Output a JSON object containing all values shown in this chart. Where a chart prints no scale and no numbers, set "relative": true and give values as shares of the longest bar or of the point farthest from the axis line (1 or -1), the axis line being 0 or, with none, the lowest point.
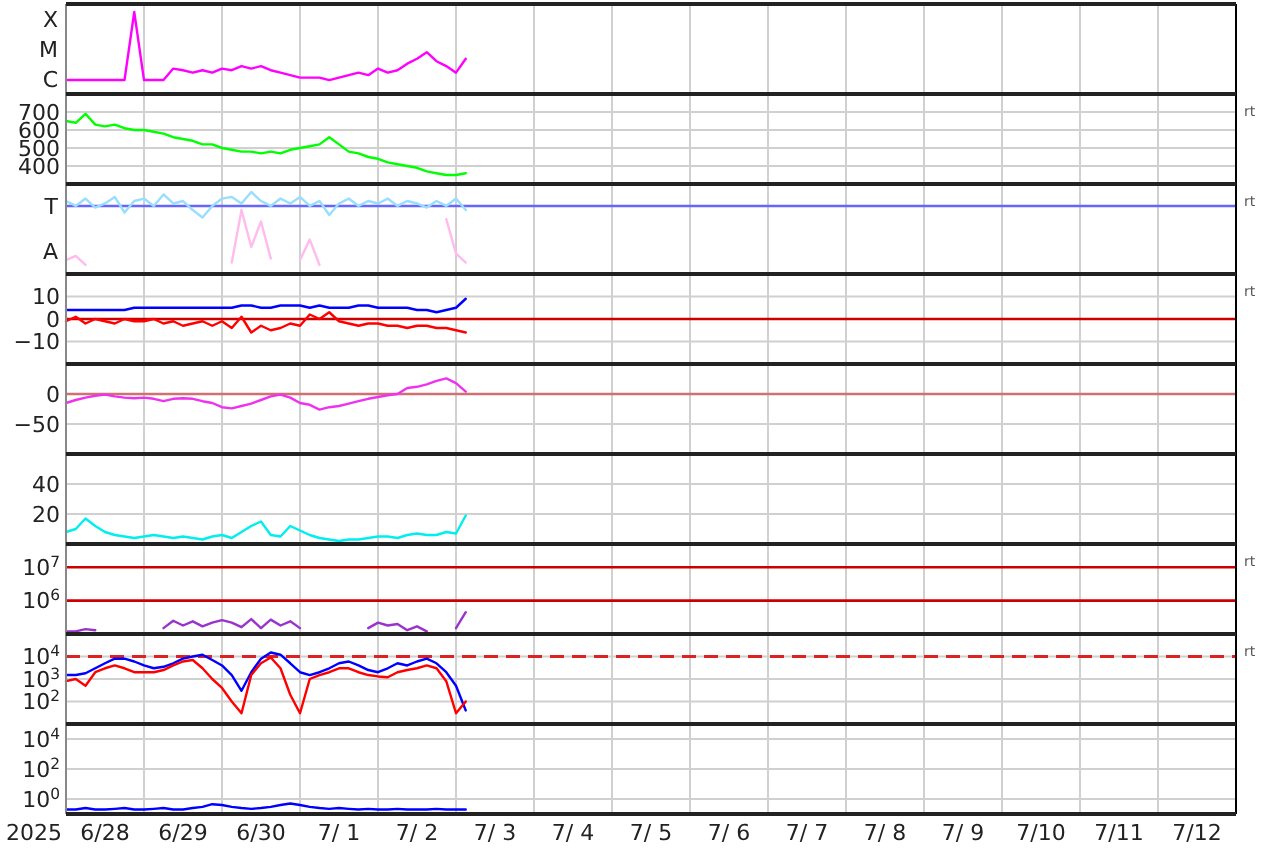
{
  "chart_data": [
    {
      "type": "line",
      "relative": true,
      "annotations": [
        "X",
        "M",
        "C"
      ],
      "grid": "x",
      "tick_labels": false,
      "xlim": [
        "2025-06-28T00:00",
        "2025-07-13T00:00"
      ],
      "xticks": [
        {
          "value": "2025-06-29T00:00",
          "label": null
        },
        {
          "value": "2025-06-30T00:00",
          "label": null
        },
        {
          "value": "2025-07-01T00:00",
          "label": null
        },
        {
          "value": "2025-07-02T00:00",
          "label": null
        },
        {
          "value": "2025-07-03T00:00",
          "label": null
        },
        {
          "value": "2025-07-04T00:00",
          "label": null
        },
        {
          "value": "2025-07-05T00:00",
          "label": null
        },
        {
          "value": "2025-07-06T00:00",
          "label": null
        },
        {
          "value": "2025-07-07T00:00",
          "label": null
        },
        {
          "value": "2025-07-08T00:00",
          "label": null
        },
        {
          "value": "2025-07-09T00:00",
          "label": null
        },
        {
          "value": "2025-07-10T00:00",
          "label": null
        },
        {
          "value": "2025-07-11T00:00",
          "label": null
        },
        {
          "value": "2025-07-12T00:00",
          "label": null
        }
      ],
      "x": [
        "2025-06-28T00:00",
        "2025-06-28T03:00",
        "2025-06-28T06:00",
        "2025-06-28T09:00",
        "2025-06-28T12:00",
        "2025-06-28T15:00",
        "2025-06-28T18:00",
        "2025-06-28T21:00",
        "2025-06-29T00:00",
        "2025-06-29T03:00",
        "2025-06-29T06:00",
        "2025-06-29T09:00",
        "2025-06-29T12:00",
        "2025-06-29T15:00",
        "2025-06-29T18:00",
        "2025-06-29T21:00",
        "2025-06-30T00:00",
        "2025-06-30T03:00",
        "2025-06-30T06:00",
        "2025-06-30T09:00",
        "2025-06-30T12:00",
        "2025-06-30T15:00",
        "2025-06-30T18:00",
        "2025-06-30T21:00",
        "2025-07-01T00:00",
        "2025-07-01T03:00",
        "2025-07-01T06:00",
        "2025-07-01T09:00",
        "2025-07-01T12:00",
        "2025-07-01T15:00",
        "2025-07-01T18:00",
        "2025-07-01T21:00",
        "2025-07-02T00:00",
        "2025-07-02T03:00",
        "2025-07-02T06:00",
        "2025-07-02T09:00",
        "2025-07-02T12:00",
        "2025-07-02T15:00",
        "2025-07-02T18:00",
        "2025-07-02T21:00",
        "2025-07-03T00:00",
        "2025-07-03T03:00"
      ],
      "series": [
        {
          "color": "#ff00ff",
          "values": [
            0.17,
            0.17,
            0.17,
            0.17,
            0.17,
            0.17,
            0.17,
            1,
            0.17,
            0.17,
            0.17,
            0.31,
            0.29,
            0.26,
            0.29,
            0.26,
            0.31,
            0.29,
            0.34,
            0.31,
            0.34,
            0.29,
            0.26,
            0.23,
            0.2,
            0.2,
            0.2,
            0.17,
            0.2,
            0.23,
            0.26,
            0.23,
            0.31,
            0.26,
            0.29,
            0.37,
            0.43,
            0.51,
            0.4,
            0.34,
            0.26,
            0.43
          ]
        }
      ]
    },
    {
      "type": "line",
      "ylim": [
        300,
        800
      ],
      "yticks": [
        400,
        500,
        600,
        700
      ],
      "grid": true,
      "tick_labels": "y",
      "xlim": [
        "2025-06-28T00:00",
        "2025-07-13T00:00"
      ],
      "y2label": "rt",
      "xticks": [
        {
          "value": "2025-06-29T00:00",
          "label": null
        },
        {
          "value": "2025-06-30T00:00",
          "label": null
        },
        {
          "value": "2025-07-01T00:00",
          "label": null
        },
        {
          "value": "2025-07-02T00:00",
          "label": null
        },
        {
          "value": "2025-07-03T00:00",
          "label": null
        },
        {
          "value": "2025-07-04T00:00",
          "label": null
        },
        {
          "value": "2025-07-05T00:00",
          "label": null
        },
        {
          "value": "2025-07-06T00:00",
          "label": null
        },
        {
          "value": "2025-07-07T00:00",
          "label": null
        },
        {
          "value": "2025-07-08T00:00",
          "label": null
        },
        {
          "value": "2025-07-09T00:00",
          "label": null
        },
        {
          "value": "2025-07-10T00:00",
          "label": null
        },
        {
          "value": "2025-07-11T00:00",
          "label": null
        },
        {
          "value": "2025-07-12T00:00",
          "label": null
        }
      ],
      "x": [
        "2025-06-28T00:00",
        "2025-06-28T03:00",
        "2025-06-28T06:00",
        "2025-06-28T09:00",
        "2025-06-28T12:00",
        "2025-06-28T15:00",
        "2025-06-28T18:00",
        "2025-06-28T21:00",
        "2025-06-29T00:00",
        "2025-06-29T03:00",
        "2025-06-29T06:00",
        "2025-06-29T09:00",
        "2025-06-29T12:00",
        "2025-06-29T15:00",
        "2025-06-29T18:00",
        "2025-06-29T21:00",
        "2025-06-30T00:00",
        "2025-06-30T03:00",
        "2025-06-30T06:00",
        "2025-06-30T09:00",
        "2025-06-30T12:00",
        "2025-06-30T15:00",
        "2025-06-30T18:00",
        "2025-06-30T21:00",
        "2025-07-01T00:00",
        "2025-07-01T03:00",
        "2025-07-01T06:00",
        "2025-07-01T09:00",
        "2025-07-01T12:00",
        "2025-07-01T15:00",
        "2025-07-01T18:00",
        "2025-07-01T21:00",
        "2025-07-02T00:00",
        "2025-07-02T03:00",
        "2025-07-02T06:00",
        "2025-07-02T09:00",
        "2025-07-02T12:00",
        "2025-07-02T15:00",
        "2025-07-02T18:00",
        "2025-07-02T21:00",
        "2025-07-03T00:00",
        "2025-07-03T03:00"
      ],
      "series": [
        {
          "color": "#00ff00",
          "values": [
            650,
            640,
            690,
            630,
            620,
            630,
            610,
            600,
            600,
            590,
            580,
            560,
            550,
            540,
            520,
            520,
            500,
            490,
            480,
            480,
            470,
            480,
            470,
            490,
            500,
            510,
            520,
            560,
            520,
            480,
            470,
            450,
            440,
            420,
            410,
            400,
            390,
            370,
            360,
            350,
            350,
            360
          ]
        }
      ]
    },
    {
      "type": "line",
      "relative": true,
      "annotations": [
        "T",
        "A"
      ],
      "grid": "x",
      "tick_labels": false,
      "xlim": [
        "2025-06-28T00:00",
        "2025-07-13T00:00"
      ],
      "y2label": "rt",
      "ref_lines": [
        {
          "axis": "y",
          "value": 0.83,
          "color": "#6666ff"
        }
      ],
      "xticks": [
        {
          "value": "2025-06-29T00:00",
          "label": null
        },
        {
          "value": "2025-06-30T00:00",
          "label": null
        },
        {
          "value": "2025-07-01T00:00",
          "label": null
        },
        {
          "value": "2025-07-02T00:00",
          "label": null
        },
        {
          "value": "2025-07-03T00:00",
          "label": null
        },
        {
          "value": "2025-07-04T00:00",
          "label": null
        },
        {
          "value": "2025-07-05T00:00",
          "label": null
        },
        {
          "value": "2025-07-06T00:00",
          "label": null
        },
        {
          "value": "2025-07-07T00:00",
          "label": null
        },
        {
          "value": "2025-07-08T00:00",
          "label": null
        },
        {
          "value": "2025-07-09T00:00",
          "label": null
        },
        {
          "value": "2025-07-10T00:00",
          "label": null
        },
        {
          "value": "2025-07-11T00:00",
          "label": null
        },
        {
          "value": "2025-07-12T00:00",
          "label": null
        }
      ],
      "x": [
        "2025-06-28T00:00",
        "2025-06-28T03:00",
        "2025-06-28T06:00",
        "2025-06-28T09:00",
        "2025-06-28T12:00",
        "2025-06-28T15:00",
        "2025-06-28T18:00",
        "2025-06-28T21:00",
        "2025-06-29T00:00",
        "2025-06-29T03:00",
        "2025-06-29T06:00",
        "2025-06-29T09:00",
        "2025-06-29T12:00",
        "2025-06-29T15:00",
        "2025-06-29T18:00",
        "2025-06-29T21:00",
        "2025-06-30T00:00",
        "2025-06-30T03:00",
        "2025-06-30T06:00",
        "2025-06-30T09:00",
        "2025-06-30T12:00",
        "2025-06-30T15:00",
        "2025-06-30T18:00",
        "2025-06-30T21:00",
        "2025-07-01T00:00",
        "2025-07-01T03:00",
        "2025-07-01T06:00",
        "2025-07-01T09:00",
        "2025-07-01T12:00",
        "2025-07-01T15:00",
        "2025-07-01T18:00",
        "2025-07-01T21:00",
        "2025-07-02T00:00",
        "2025-07-02T03:00",
        "2025-07-02T06:00",
        "2025-07-02T09:00",
        "2025-07-02T12:00",
        "2025-07-02T15:00",
        "2025-07-02T18:00",
        "2025-07-02T21:00",
        "2025-07-03T00:00",
        "2025-07-03T03:00"
      ],
      "series": [
        {
          "color": "#99ddff",
          "values": [
            0.89,
            0.83,
            0.92,
            0.81,
            0.86,
            0.94,
            0.75,
            0.89,
            0.92,
            0.83,
            0.97,
            0.86,
            0.89,
            0.78,
            0.69,
            0.83,
            0.92,
            0.94,
            0.86,
            1,
            0.89,
            0.83,
            0.92,
            0.86,
            0.94,
            0.83,
            0.89,
            0.72,
            0.86,
            0.92,
            0.83,
            0.89,
            0.86,
            0.92,
            0.83,
            0.89,
            0.86,
            0.81,
            0.89,
            0.83,
            0.92,
            0.78
          ]
        },
        {
          "color": "#ffbbee",
          "values": [
            0.17,
            0.22,
            0.11,
            null,
            null,
            null,
            null,
            null,
            null,
            null,
            null,
            null,
            null,
            null,
            null,
            null,
            null,
            0.14,
            0.78,
            0.33,
            0.64,
            0.19,
            null,
            null,
            0.17,
            0.42,
            0.11,
            null,
            null,
            null,
            null,
            null,
            null,
            null,
            null,
            null,
            null,
            null,
            null,
            0.67,
            0.25,
            0.14
          ]
        }
      ]
    },
    {
      "type": "line",
      "ylim": [
        -20,
        20
      ],
      "yticks": [
        {
          "value": 10,
          "label": "10"
        },
        {
          "value": 0,
          "label": "0"
        },
        {
          "value": -10,
          "label": "−10"
        }
      ],
      "grid": true,
      "tick_labels": "y",
      "xlim": [
        "2025-06-28T00:00",
        "2025-07-13T00:00"
      ],
      "y2label": "rt",
      "ref_lines": [
        {
          "axis": "y",
          "value": 0,
          "color": "#cc0000"
        }
      ],
      "xticks": [
        {
          "value": "2025-06-29T00:00",
          "label": null
        },
        {
          "value": "2025-06-30T00:00",
          "label": null
        },
        {
          "value": "2025-07-01T00:00",
          "label": null
        },
        {
          "value": "2025-07-02T00:00",
          "label": null
        },
        {
          "value": "2025-07-03T00:00",
          "label": null
        },
        {
          "value": "2025-07-04T00:00",
          "label": null
        },
        {
          "value": "2025-07-05T00:00",
          "label": null
        },
        {
          "value": "2025-07-06T00:00",
          "label": null
        },
        {
          "value": "2025-07-07T00:00",
          "label": null
        },
        {
          "value": "2025-07-08T00:00",
          "label": null
        },
        {
          "value": "2025-07-09T00:00",
          "label": null
        },
        {
          "value": "2025-07-10T00:00",
          "label": null
        },
        {
          "value": "2025-07-11T00:00",
          "label": null
        },
        {
          "value": "2025-07-12T00:00",
          "label": null
        }
      ],
      "x": [
        "2025-06-28T00:00",
        "2025-06-28T03:00",
        "2025-06-28T06:00",
        "2025-06-28T09:00",
        "2025-06-28T12:00",
        "2025-06-28T15:00",
        "2025-06-28T18:00",
        "2025-06-28T21:00",
        "2025-06-29T00:00",
        "2025-06-29T03:00",
        "2025-06-29T06:00",
        "2025-06-29T09:00",
        "2025-06-29T12:00",
        "2025-06-29T15:00",
        "2025-06-29T18:00",
        "2025-06-29T21:00",
        "2025-06-30T00:00",
        "2025-06-30T03:00",
        "2025-06-30T06:00",
        "2025-06-30T09:00",
        "2025-06-30T12:00",
        "2025-06-30T15:00",
        "2025-06-30T18:00",
        "2025-06-30T21:00",
        "2025-07-01T00:00",
        "2025-07-01T03:00",
        "2025-07-01T06:00",
        "2025-07-01T09:00",
        "2025-07-01T12:00",
        "2025-07-01T15:00",
        "2025-07-01T18:00",
        "2025-07-01T21:00",
        "2025-07-02T00:00",
        "2025-07-02T03:00",
        "2025-07-02T06:00",
        "2025-07-02T09:00",
        "2025-07-02T12:00",
        "2025-07-02T15:00",
        "2025-07-02T18:00",
        "2025-07-02T21:00",
        "2025-07-03T00:00",
        "2025-07-03T03:00"
      ],
      "series": [
        {
          "color": "#0000ff",
          "values": [
            4,
            4,
            4,
            4,
            4,
            4,
            4,
            5,
            5,
            5,
            5,
            5,
            5,
            5,
            5,
            5,
            5,
            5,
            6,
            6,
            5,
            5,
            6,
            6,
            6,
            5,
            6,
            5,
            5,
            5,
            6,
            6,
            5,
            5,
            5,
            5,
            4,
            4,
            3,
            4,
            5,
            9
          ]
        },
        {
          "color": "#ff0000",
          "values": [
            -1,
            1,
            -2,
            0,
            -1,
            -2,
            0,
            -1,
            -1,
            0,
            -2,
            -1,
            -3,
            -2,
            -1,
            -3,
            -1,
            -4,
            1,
            -6,
            -3,
            -5,
            -4,
            -2,
            -3,
            2,
            0,
            3,
            -1,
            -2,
            -3,
            -2,
            -2,
            -3,
            -3,
            -4,
            -3,
            -3,
            -4,
            -4,
            -5,
            -6
          ]
        }
      ]
    },
    {
      "type": "line",
      "ylim": [
        -100,
        50
      ],
      "yticks": [
        {
          "value": 0,
          "label": "0"
        },
        {
          "value": -50,
          "label": "−50"
        }
      ],
      "grid": true,
      "tick_labels": "y",
      "xlim": [
        "2025-06-28T00:00",
        "2025-07-13T00:00"
      ],
      "ref_lines": [
        {
          "axis": "y",
          "value": 0,
          "color": "#d07070"
        }
      ],
      "xticks": [
        {
          "value": "2025-06-29T00:00",
          "label": null
        },
        {
          "value": "2025-06-30T00:00",
          "label": null
        },
        {
          "value": "2025-07-01T00:00",
          "label": null
        },
        {
          "value": "2025-07-02T00:00",
          "label": null
        },
        {
          "value": "2025-07-03T00:00",
          "label": null
        },
        {
          "value": "2025-07-04T00:00",
          "label": null
        },
        {
          "value": "2025-07-05T00:00",
          "label": null
        },
        {
          "value": "2025-07-06T00:00",
          "label": null
        },
        {
          "value": "2025-07-07T00:00",
          "label": null
        },
        {
          "value": "2025-07-08T00:00",
          "label": null
        },
        {
          "value": "2025-07-09T00:00",
          "label": null
        },
        {
          "value": "2025-07-10T00:00",
          "label": null
        },
        {
          "value": "2025-07-11T00:00",
          "label": null
        },
        {
          "value": "2025-07-12T00:00",
          "label": null
        }
      ],
      "x": [
        "2025-06-28T00:00",
        "2025-06-28T03:00",
        "2025-06-28T06:00",
        "2025-06-28T09:00",
        "2025-06-28T12:00",
        "2025-06-28T15:00",
        "2025-06-28T18:00",
        "2025-06-28T21:00",
        "2025-06-29T00:00",
        "2025-06-29T03:00",
        "2025-06-29T06:00",
        "2025-06-29T09:00",
        "2025-06-29T12:00",
        "2025-06-29T15:00",
        "2025-06-29T18:00",
        "2025-06-29T21:00",
        "2025-06-30T00:00",
        "2025-06-30T03:00",
        "2025-06-30T06:00",
        "2025-06-30T09:00",
        "2025-06-30T12:00",
        "2025-06-30T15:00",
        "2025-06-30T18:00",
        "2025-06-30T21:00",
        "2025-07-01T00:00",
        "2025-07-01T03:00",
        "2025-07-01T06:00",
        "2025-07-01T09:00",
        "2025-07-01T12:00",
        "2025-07-01T15:00",
        "2025-07-01T18:00",
        "2025-07-01T21:00",
        "2025-07-02T00:00",
        "2025-07-02T03:00",
        "2025-07-02T06:00",
        "2025-07-02T09:00",
        "2025-07-02T12:00",
        "2025-07-02T15:00",
        "2025-07-02T18:00",
        "2025-07-02T21:00",
        "2025-07-03T00:00",
        "2025-07-03T03:00"
      ],
      "series": [
        {
          "color": "#ee33ee",
          "values": [
            -15,
            -10,
            -6,
            -3,
            -1,
            -4,
            -6,
            -7,
            -6,
            -8,
            -12,
            -8,
            -7,
            -8,
            -12,
            -15,
            -22,
            -24,
            -20,
            -16,
            -10,
            -4,
            -1,
            -6,
            -15,
            -18,
            -26,
            -22,
            -20,
            -16,
            -12,
            -8,
            -5,
            -2,
            0,
            10,
            12,
            16,
            22,
            26,
            18,
            4
          ]
        }
      ]
    },
    {
      "type": "line",
      "ylim": [
        0,
        60
      ],
      "yticks": [
        20,
        40
      ],
      "grid": true,
      "tick_labels": "y",
      "xlim": [
        "2025-06-28T00:00",
        "2025-07-13T00:00"
      ],
      "xticks": [
        {
          "value": "2025-06-29T00:00",
          "label": null
        },
        {
          "value": "2025-06-30T00:00",
          "label": null
        },
        {
          "value": "2025-07-01T00:00",
          "label": null
        },
        {
          "value": "2025-07-02T00:00",
          "label": null
        },
        {
          "value": "2025-07-03T00:00",
          "label": null
        },
        {
          "value": "2025-07-04T00:00",
          "label": null
        },
        {
          "value": "2025-07-05T00:00",
          "label": null
        },
        {
          "value": "2025-07-06T00:00",
          "label": null
        },
        {
          "value": "2025-07-07T00:00",
          "label": null
        },
        {
          "value": "2025-07-08T00:00",
          "label": null
        },
        {
          "value": "2025-07-09T00:00",
          "label": null
        },
        {
          "value": "2025-07-10T00:00",
          "label": null
        },
        {
          "value": "2025-07-11T00:00",
          "label": null
        },
        {
          "value": "2025-07-12T00:00",
          "label": null
        }
      ],
      "x": [
        "2025-06-28T00:00",
        "2025-06-28T03:00",
        "2025-06-28T06:00",
        "2025-06-28T09:00",
        "2025-06-28T12:00",
        "2025-06-28T15:00",
        "2025-06-28T18:00",
        "2025-06-28T21:00",
        "2025-06-29T00:00",
        "2025-06-29T03:00",
        "2025-06-29T06:00",
        "2025-06-29T09:00",
        "2025-06-29T12:00",
        "2025-06-29T15:00",
        "2025-06-29T18:00",
        "2025-06-29T21:00",
        "2025-06-30T00:00",
        "2025-06-30T03:00",
        "2025-06-30T06:00",
        "2025-06-30T09:00",
        "2025-06-30T12:00",
        "2025-06-30T15:00",
        "2025-06-30T18:00",
        "2025-06-30T21:00",
        "2025-07-01T00:00",
        "2025-07-01T03:00",
        "2025-07-01T06:00",
        "2025-07-01T09:00",
        "2025-07-01T12:00",
        "2025-07-01T15:00",
        "2025-07-01T18:00",
        "2025-07-01T21:00",
        "2025-07-02T00:00",
        "2025-07-02T03:00",
        "2025-07-02T06:00",
        "2025-07-02T09:00",
        "2025-07-02T12:00",
        "2025-07-02T15:00",
        "2025-07-02T18:00",
        "2025-07-02T21:00",
        "2025-07-03T00:00",
        "2025-07-03T03:00"
      ],
      "series": [
        {
          "color": "#00eeee",
          "values": [
            8,
            10,
            17,
            12,
            8,
            6,
            5,
            4,
            5,
            6,
            5,
            4,
            5,
            4,
            3,
            5,
            6,
            4,
            8,
            12,
            15,
            6,
            5,
            12,
            9,
            6,
            4,
            3,
            2,
            3,
            3,
            4,
            5,
            5,
            4,
            6,
            7,
            6,
            6,
            8,
            7,
            19
          ]
        }
      ]
    },
    {
      "type": "line",
      "log": "y",
      "ylim": [
        100000,
        50000000
      ],
      "yticks": [
        {
          "value": 10000000,
          "label": "10$^{7}$"
        },
        {
          "value": 1000000,
          "label": "10$^{6}$"
        }
      ],
      "grid": "x",
      "tick_labels": "y",
      "xlim": [
        "2025-06-28T00:00",
        "2025-07-13T00:00"
      ],
      "y2label": "rt",
      "ref_lines": [
        {
          "axis": "y",
          "value": 10000000,
          "color": "#cc0000"
        },
        {
          "axis": "y",
          "value": 1000000,
          "color": "#cc0000"
        }
      ],
      "xticks": [
        {
          "value": "2025-06-29T00:00",
          "label": null
        },
        {
          "value": "2025-06-30T00:00",
          "label": null
        },
        {
          "value": "2025-07-01T00:00",
          "label": null
        },
        {
          "value": "2025-07-02T00:00",
          "label": null
        },
        {
          "value": "2025-07-03T00:00",
          "label": null
        },
        {
          "value": "2025-07-04T00:00",
          "label": null
        },
        {
          "value": "2025-07-05T00:00",
          "label": null
        },
        {
          "value": "2025-07-06T00:00",
          "label": null
        },
        {
          "value": "2025-07-07T00:00",
          "label": null
        },
        {
          "value": "2025-07-08T00:00",
          "label": null
        },
        {
          "value": "2025-07-09T00:00",
          "label": null
        },
        {
          "value": "2025-07-10T00:00",
          "label": null
        },
        {
          "value": "2025-07-11T00:00",
          "label": null
        },
        {
          "value": "2025-07-12T00:00",
          "label": null
        }
      ],
      "x": [
        "2025-06-28T00:00",
        "2025-06-28T03:00",
        "2025-06-28T06:00",
        "2025-06-28T09:00",
        "2025-06-28T12:00",
        "2025-06-28T15:00",
        "2025-06-28T18:00",
        "2025-06-28T21:00",
        "2025-06-29T00:00",
        "2025-06-29T03:00",
        "2025-06-29T06:00",
        "2025-06-29T09:00",
        "2025-06-29T12:00",
        "2025-06-29T15:00",
        "2025-06-29T18:00",
        "2025-06-29T21:00",
        "2025-06-30T00:00",
        "2025-06-30T03:00",
        "2025-06-30T06:00",
        "2025-06-30T09:00",
        "2025-06-30T12:00",
        "2025-06-30T15:00",
        "2025-06-30T18:00",
        "2025-06-30T21:00",
        "2025-07-01T00:00",
        "2025-07-01T03:00",
        "2025-07-01T06:00",
        "2025-07-01T09:00",
        "2025-07-01T12:00",
        "2025-07-01T15:00",
        "2025-07-01T18:00",
        "2025-07-01T21:00",
        "2025-07-02T00:00",
        "2025-07-02T03:00",
        "2025-07-02T06:00",
        "2025-07-02T09:00",
        "2025-07-02T12:00",
        "2025-07-02T15:00",
        "2025-07-02T18:00",
        "2025-07-02T21:00",
        "2025-07-03T00:00",
        "2025-07-03T03:00"
      ],
      "series": [
        {
          "color": "#9933cc",
          "values": [
            120000,
            120000,
            140000,
            130000,
            null,
            null,
            null,
            null,
            null,
            null,
            150000,
            250000,
            180000,
            240000,
            170000,
            220000,
            260000,
            220000,
            160000,
            280000,
            150000,
            270000,
            180000,
            240000,
            150000,
            null,
            null,
            null,
            null,
            null,
            null,
            150000,
            220000,
            180000,
            200000,
            130000,
            170000,
            120000,
            null,
            null,
            150000,
            450000
          ]
        }
      ]
    },
    {
      "type": "line",
      "log": "y",
      "ylim": [
        10,
        100000
      ],
      "yticks": [
        {
          "value": 10000,
          "label": "10$^{4}$"
        },
        {
          "value": 1000,
          "label": "10$^{3}$"
        },
        {
          "value": 100,
          "label": "10$^{2}$"
        }
      ],
      "grid": true,
      "tick_labels": "y",
      "xlim": [
        "2025-06-28T00:00",
        "2025-07-13T00:00"
      ],
      "y2label": "rt",
      "ref_lines": [
        {
          "axis": "y",
          "value": 10000,
          "color": "#dd2222",
          "line_style": "dashed"
        }
      ],
      "xticks": [
        {
          "value": "2025-06-29T00:00",
          "label": null
        },
        {
          "value": "2025-06-30T00:00",
          "label": null
        },
        {
          "value": "2025-07-01T00:00",
          "label": null
        },
        {
          "value": "2025-07-02T00:00",
          "label": null
        },
        {
          "value": "2025-07-03T00:00",
          "label": null
        },
        {
          "value": "2025-07-04T00:00",
          "label": null
        },
        {
          "value": "2025-07-05T00:00",
          "label": null
        },
        {
          "value": "2025-07-06T00:00",
          "label": null
        },
        {
          "value": "2025-07-07T00:00",
          "label": null
        },
        {
          "value": "2025-07-08T00:00",
          "label": null
        },
        {
          "value": "2025-07-09T00:00",
          "label": null
        },
        {
          "value": "2025-07-10T00:00",
          "label": null
        },
        {
          "value": "2025-07-11T00:00",
          "label": null
        },
        {
          "value": "2025-07-12T00:00",
          "label": null
        }
      ],
      "x": [
        "2025-06-28T00:00",
        "2025-06-28T03:00",
        "2025-06-28T06:00",
        "2025-06-28T09:00",
        "2025-06-28T12:00",
        "2025-06-28T15:00",
        "2025-06-28T18:00",
        "2025-06-28T21:00",
        "2025-06-29T00:00",
        "2025-06-29T03:00",
        "2025-06-29T06:00",
        "2025-06-29T09:00",
        "2025-06-29T12:00",
        "2025-06-29T15:00",
        "2025-06-29T18:00",
        "2025-06-29T21:00",
        "2025-06-30T00:00",
        "2025-06-30T03:00",
        "2025-06-30T06:00",
        "2025-06-30T09:00",
        "2025-06-30T12:00",
        "2025-06-30T15:00",
        "2025-06-30T18:00",
        "2025-06-30T21:00",
        "2025-07-01T00:00",
        "2025-07-01T03:00",
        "2025-07-01T06:00",
        "2025-07-01T09:00",
        "2025-07-01T12:00",
        "2025-07-01T15:00",
        "2025-07-01T18:00",
        "2025-07-01T21:00",
        "2025-07-02T00:00",
        "2025-07-02T03:00",
        "2025-07-02T06:00",
        "2025-07-02T09:00",
        "2025-07-02T12:00",
        "2025-07-02T15:00",
        "2025-07-02T18:00",
        "2025-07-02T21:00",
        "2025-07-03T00:00",
        "2025-07-03T03:00"
      ],
      "series": [
        {
          "color": "#0000ff",
          "values": [
            1500,
            1500,
            1800,
            3000,
            5000,
            8000,
            8000,
            6000,
            4000,
            3000,
            3500,
            5000,
            8000,
            10000,
            12000,
            7000,
            4000,
            1500,
            300,
            2000,
            8000,
            15000,
            12000,
            5000,
            2000,
            1500,
            2000,
            3000,
            5000,
            6000,
            4000,
            2500,
            2000,
            3000,
            5000,
            4000,
            6000,
            8000,
            5000,
            2000,
            500,
            40
          ]
        },
        {
          "color": "#ff0000",
          "values": [
            800,
            1000,
            500,
            2000,
            3000,
            4000,
            3000,
            2000,
            2000,
            2000,
            2500,
            4000,
            6000,
            7000,
            3000,
            1000,
            400,
            100,
            30,
            1500,
            5000,
            9000,
            3000,
            200,
            30,
            1000,
            1500,
            2000,
            3000,
            3000,
            2000,
            1500,
            1300,
            1200,
            2000,
            2500,
            3000,
            4000,
            3000,
            800,
            30,
            100
          ]
        }
      ]
    },
    {
      "type": "line",
      "log": "y",
      "ylim": [
        0.1,
        100000
      ],
      "yticks": [
        {
          "value": 10000,
          "label": "10$^{4}$"
        },
        {
          "value": 100,
          "label": "10$^{2}$"
        },
        {
          "value": 1,
          "label": "10$^{0}$"
        }
      ],
      "grid": true,
      "xlim": [
        "2025-06-28T00:00",
        "2025-07-13T00:00"
      ],
      "xlabel": "2025",
      "xticks": [
        {
          "value": "2025-06-28T12:00",
          "label": "6/28"
        },
        {
          "value": "2025-06-29T12:00",
          "label": "6/29"
        },
        {
          "value": "2025-06-30T12:00",
          "label": "6/30"
        },
        {
          "value": "2025-07-01T12:00",
          "label": "7/ 1"
        },
        {
          "value": "2025-07-02T12:00",
          "label": "7/ 2"
        },
        {
          "value": "2025-07-03T12:00",
          "label": "7/ 3"
        },
        {
          "value": "2025-07-04T12:00",
          "label": "7/ 4"
        },
        {
          "value": "2025-07-05T12:00",
          "label": "7/ 5"
        },
        {
          "value": "2025-07-06T12:00",
          "label": "7/ 6"
        },
        {
          "value": "2025-07-07T12:00",
          "label": "7/ 7"
        },
        {
          "value": "2025-07-08T12:00",
          "label": "7/ 8"
        },
        {
          "value": "2025-07-09T12:00",
          "label": "7/ 9"
        },
        {
          "value": "2025-07-10T12:00",
          "label": "7/10"
        },
        {
          "value": "2025-07-11T12:00",
          "label": "7/11"
        },
        {
          "value": "2025-07-12T12:00",
          "label": "7/12"
        },
        {
          "value": "2025-06-29T00:00",
          "label": null
        },
        {
          "value": "2025-06-30T00:00",
          "label": null
        },
        {
          "value": "2025-07-01T00:00",
          "label": null
        },
        {
          "value": "2025-07-02T00:00",
          "label": null
        },
        {
          "value": "2025-07-03T00:00",
          "label": null
        },
        {
          "value": "2025-07-04T00:00",
          "label": null
        },
        {
          "value": "2025-07-05T00:00",
          "label": null
        },
        {
          "value": "2025-07-06T00:00",
          "label": null
        },
        {
          "value": "2025-07-07T00:00",
          "label": null
        },
        {
          "value": "2025-07-08T00:00",
          "label": null
        },
        {
          "value": "2025-07-09T00:00",
          "label": null
        },
        {
          "value": "2025-07-10T00:00",
          "label": null
        },
        {
          "value": "2025-07-11T00:00",
          "label": null
        },
        {
          "value": "2025-07-12T00:00",
          "label": null
        }
      ],
      "x": [
        "2025-06-28T00:00",
        "2025-06-28T03:00",
        "2025-06-28T06:00",
        "2025-06-28T09:00",
        "2025-06-28T12:00",
        "2025-06-28T15:00",
        "2025-06-28T18:00",
        "2025-06-28T21:00",
        "2025-06-29T00:00",
        "2025-06-29T03:00",
        "2025-06-29T06:00",
        "2025-06-29T09:00",
        "2025-06-29T12:00",
        "2025-06-29T15:00",
        "2025-06-29T18:00",
        "2025-06-29T21:00",
        "2025-06-30T00:00",
        "2025-06-30T03:00",
        "2025-06-30T06:00",
        "2025-06-30T09:00",
        "2025-06-30T12:00",
        "2025-06-30T15:00",
        "2025-06-30T18:00",
        "2025-06-30T21:00",
        "2025-07-01T00:00",
        "2025-07-01T03:00",
        "2025-07-01T06:00",
        "2025-07-01T09:00",
        "2025-07-01T12:00",
        "2025-07-01T15:00",
        "2025-07-01T18:00",
        "2025-07-01T21:00",
        "2025-07-02T00:00",
        "2025-07-02T03:00",
        "2025-07-02T06:00",
        "2025-07-02T09:00",
        "2025-07-02T12:00",
        "2025-07-02T15:00",
        "2025-07-02T18:00",
        "2025-07-02T21:00",
        "2025-07-03T00:00",
        "2025-07-03T03:00"
      ],
      "series": [
        {
          "color": "#0000ff",
          "values": [
            0.2,
            0.2,
            0.25,
            0.2,
            0.2,
            0.22,
            0.25,
            0.2,
            0.2,
            0.22,
            0.25,
            0.2,
            0.2,
            0.25,
            0.3,
            0.45,
            0.4,
            0.3,
            0.25,
            0.22,
            0.25,
            0.3,
            0.4,
            0.5,
            0.4,
            0.3,
            0.25,
            0.22,
            0.25,
            0.22,
            0.2,
            0.22,
            0.2,
            0.2,
            0.22,
            0.2,
            0.2,
            0.2,
            0.22,
            0.2,
            0.2,
            0.2
          ]
        }
      ]
    }
  ]
}
